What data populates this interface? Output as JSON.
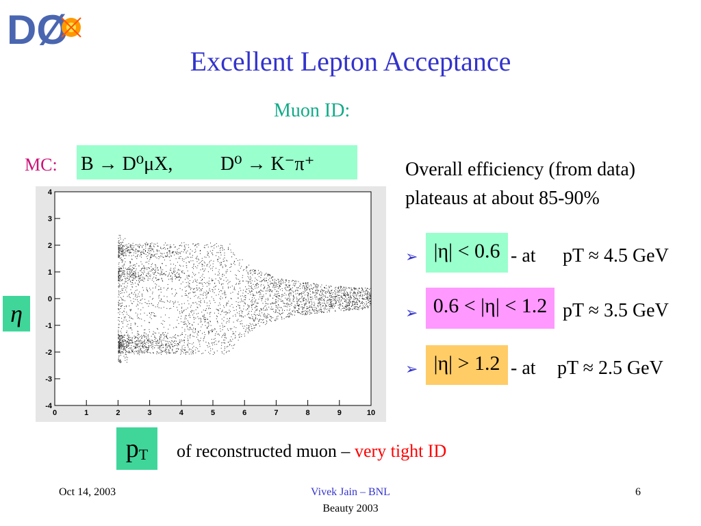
{
  "logo": {
    "text": "DØ"
  },
  "slide": {
    "title": "Excellent Lepton Acceptance",
    "subtitle": "Muon ID:"
  },
  "mc": {
    "label": "MC:",
    "decay1": "B → D⁰μX,",
    "decay2": "D⁰ → K⁻π⁺"
  },
  "axis_labels": {
    "eta": "η",
    "pt": "p",
    "pt_sub": "T"
  },
  "plot": {
    "x_ticks": [
      "0",
      "1",
      "2",
      "3",
      "4",
      "5",
      "6",
      "7",
      "8",
      "9",
      "10"
    ],
    "y_ticks": [
      "4",
      "3",
      "2",
      "1",
      "0",
      "-1",
      "-2",
      "-3",
      "-4"
    ]
  },
  "caption": {
    "main": "of reconstructed muon – ",
    "highlight": "very tight ID"
  },
  "efficiency": {
    "line1": "Overall efficiency (from data)",
    "line2": "plateaus at about 85-90%"
  },
  "bullets": [
    {
      "condition": "|η| < 0.6",
      "at": "- at",
      "pt": "pT ≈ 4.5 GeV",
      "color": "#99ffcc"
    },
    {
      "condition": "0.6 < |η| < 1.2",
      "at": "",
      "pt": "pT ≈ 3.5 GeV",
      "color": "#ff99ff"
    },
    {
      "condition": "|η| > 1.2",
      "at": "- at",
      "pt": "pT ≈  2.5 GeV",
      "color": "#ffcc66"
    }
  ],
  "bullet_icon": "arrow-bullet-icon",
  "footer": {
    "date": "Oct 14, 2003",
    "author": "Vivek Jain – BNL",
    "event": "Beauty 2003",
    "page": "6"
  },
  "colors": {
    "title": "#3333cc",
    "subtitle": "#11aa88",
    "mc_label": "#cc1177",
    "highlight": "#ff0000",
    "axis_box": "#40d69a"
  }
}
